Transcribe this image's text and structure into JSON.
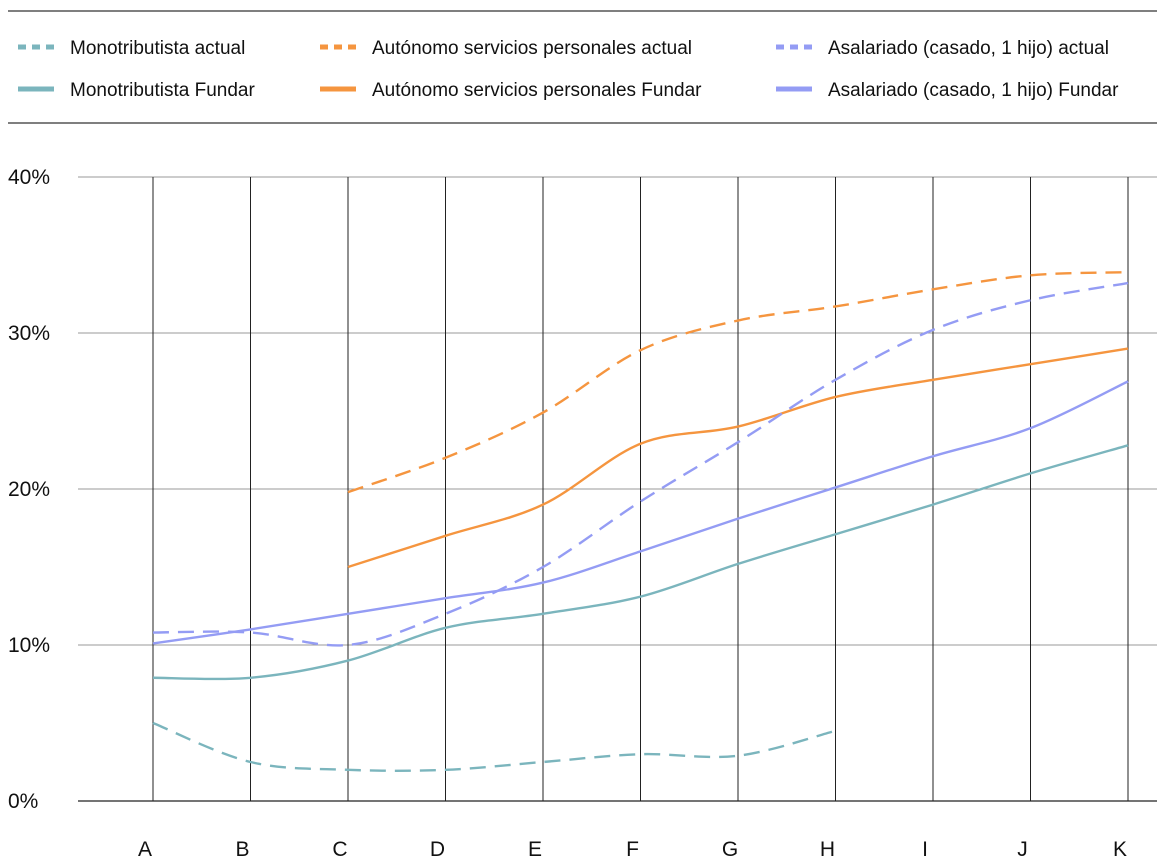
{
  "chart_data": {
    "type": "line",
    "title": "",
    "xlabel": "",
    "ylabel": "",
    "categories": [
      "A",
      "B",
      "C",
      "D",
      "E",
      "F",
      "G",
      "H",
      "I",
      "J",
      "K"
    ],
    "ylim": [
      0,
      40
    ],
    "y_ticks": [
      "0%",
      "10%",
      "20%",
      "30%",
      "40%"
    ],
    "y_tick_values": [
      0,
      10,
      20,
      30,
      40
    ],
    "grid": "horizontal and vertical",
    "legend_position": "top",
    "series": [
      {
        "name": "Monotributista actual",
        "color": "#7bb5bd",
        "dashed": true,
        "values": [
          5,
          2.5,
          2,
          2,
          2.5,
          3,
          2.9,
          4.5,
          null,
          null,
          null
        ]
      },
      {
        "name": "Monotributista Fundar",
        "color": "#7bb5bd",
        "dashed": false,
        "values": [
          7.9,
          7.9,
          9,
          11.1,
          12,
          13.1,
          15.2,
          17.1,
          19,
          21,
          22.8
        ]
      },
      {
        "name": "Autónomo servicios personales actual",
        "color": "#f5953f",
        "dashed": true,
        "values": [
          null,
          null,
          19.8,
          22,
          24.9,
          28.9,
          30.8,
          31.7,
          32.8,
          33.7,
          33.9
        ]
      },
      {
        "name": "Autónomo servicios personales Fundar",
        "color": "#f5953f",
        "dashed": false,
        "values": [
          null,
          null,
          15,
          17,
          19,
          22.9,
          24,
          25.9,
          27,
          28,
          29
        ]
      },
      {
        "name": "Asalariado (casado, 1 hijo) actual",
        "color": "#949cf4",
        "dashed": true,
        "values": [
          10.8,
          10.8,
          10,
          12,
          15,
          19.2,
          23,
          27,
          30.2,
          32.1,
          33.2
        ]
      },
      {
        "name": "Asalariado (casado, 1 hijo) Fundar",
        "color": "#949cf4",
        "dashed": false,
        "values": [
          10.1,
          11,
          12,
          13,
          14,
          16,
          18.1,
          20.1,
          22.1,
          23.9,
          26.9
        ]
      }
    ]
  }
}
